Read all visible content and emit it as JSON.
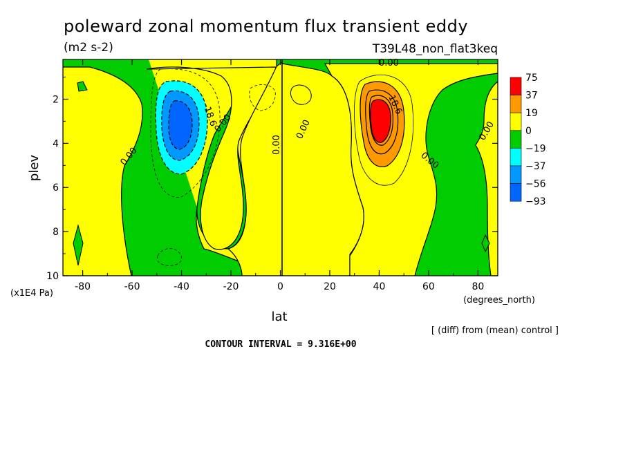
{
  "chart_data": {
    "type": "heatmap",
    "title": "poleward zonal momentum flux transient eddy",
    "units": "(m2 s-2)",
    "run_label": "T39L48_non_flat3keq",
    "xlabel": "lat",
    "xunits": "(degrees_north)",
    "ylabel": "plev",
    "yunits": "(x1E4 Pa)",
    "xlim": [
      -88,
      88
    ],
    "ylim": [
      0.2,
      10
    ],
    "y_inverted": true,
    "xticks": [
      "-80",
      "-60",
      "-40",
      "-20",
      "0",
      "20",
      "40",
      "60",
      "80"
    ],
    "yticks": [
      "2",
      "4",
      "6",
      "8",
      "10"
    ],
    "contour_labels": [
      "-18.6",
      "0.00",
      "0.00",
      "0.00",
      "0.00",
      "0.00",
      "0.00",
      "18.6",
      "0.00"
    ],
    "colorbar": {
      "levels": [
        "75",
        "37",
        "19",
        "0",
        "−19",
        "−37",
        "−56",
        "−93"
      ],
      "colors": [
        "#ff0000",
        "#ff9900",
        "#ffff00",
        "#00cc00",
        "#00ffff",
        "#0099ff",
        "#0066ff"
      ]
    },
    "features": [
      {
        "name": "negative core",
        "lat": -40,
        "plev": 2.8,
        "value": -93
      },
      {
        "name": "positive core",
        "lat": 40,
        "plev": 2.8,
        "value": 75
      }
    ],
    "contour_interval": "CONTOUR INTERVAL = 9.316E+00",
    "note": "[ (diff) from (mean) control ]"
  }
}
